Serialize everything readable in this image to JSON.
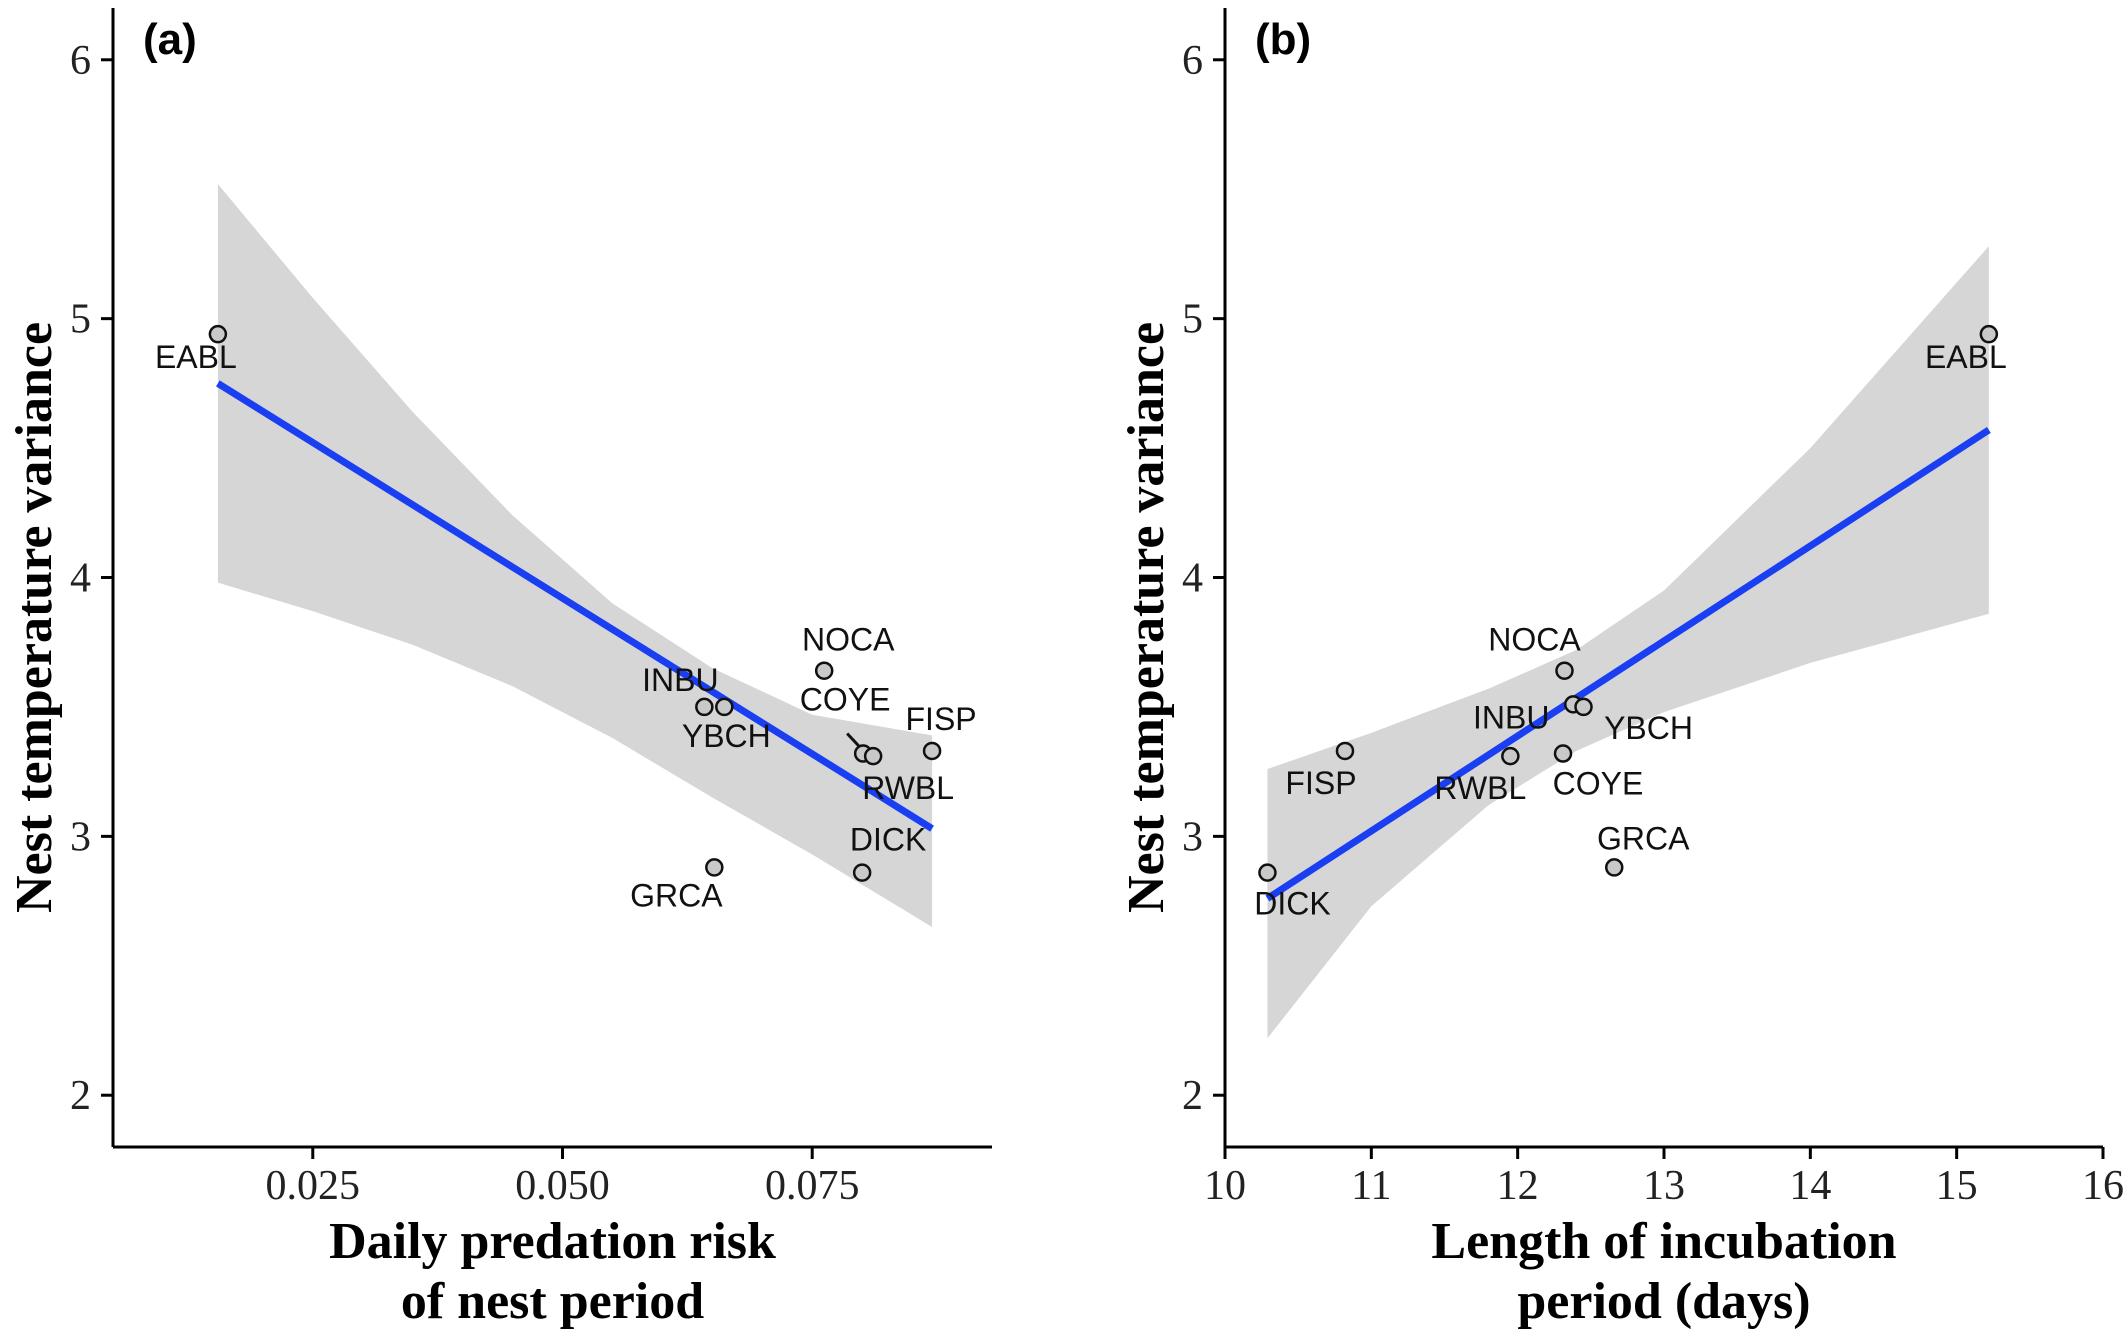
{
  "chart_data": [
    {
      "type": "scatter",
      "panel_label": "(a)",
      "xlabel": [
        "Daily predation risk",
        "of nest period"
      ],
      "ylabel": "Nest temperature variance",
      "xlim": [
        0.005,
        0.093
      ],
      "ylim": [
        1.8,
        6.2
      ],
      "xticks": [
        0.025,
        0.05,
        0.075
      ],
      "xtick_labels": [
        "0.025",
        "0.050",
        "0.075"
      ],
      "yticks": [
        2,
        3,
        4,
        5,
        6
      ],
      "ytick_labels": [
        "2",
        "3",
        "4",
        "5",
        "6"
      ],
      "grid": false,
      "points": [
        {
          "label": "EABL",
          "x": 0.0155,
          "y": 4.94
        },
        {
          "label": "NOCA",
          "x": 0.0762,
          "y": 3.64
        },
        {
          "label": "INBU",
          "x": 0.0642,
          "y": 3.5
        },
        {
          "label": "YBCH",
          "x": 0.0662,
          "y": 3.5
        },
        {
          "label": "COYE",
          "x": 0.0801,
          "y": 3.32
        },
        {
          "label": "RWBL",
          "x": 0.0811,
          "y": 3.31
        },
        {
          "label": "FISP",
          "x": 0.087,
          "y": 3.33
        },
        {
          "label": "DICK",
          "x": 0.08,
          "y": 2.86
        },
        {
          "label": "GRCA",
          "x": 0.0652,
          "y": 2.88
        }
      ],
      "fit": {
        "x": [
          0.0155,
          0.087
        ],
        "y": [
          4.75,
          3.03
        ]
      },
      "band": {
        "x": [
          0.0155,
          0.025,
          0.035,
          0.045,
          0.055,
          0.065,
          0.075,
          0.087
        ],
        "upper": [
          5.52,
          5.08,
          4.64,
          4.24,
          3.9,
          3.65,
          3.47,
          3.39
        ],
        "lower": [
          3.98,
          3.87,
          3.74,
          3.58,
          3.38,
          3.15,
          2.93,
          2.65
        ]
      }
    },
    {
      "type": "scatter",
      "panel_label": "(b)",
      "xlabel": [
        "Length of incubation",
        "period (days)"
      ],
      "ylabel": "Nest temperature variance",
      "xlim": [
        10.0,
        16.0
      ],
      "ylim": [
        1.8,
        6.2
      ],
      "xticks": [
        10,
        11,
        12,
        13,
        14,
        15,
        16
      ],
      "xtick_labels": [
        "10",
        "11",
        "12",
        "13",
        "14",
        "15",
        "16"
      ],
      "yticks": [
        2,
        3,
        4,
        5,
        6
      ],
      "ytick_labels": [
        "2",
        "3",
        "4",
        "5",
        "6"
      ],
      "grid": false,
      "points": [
        {
          "label": "EABL",
          "x": 15.22,
          "y": 4.94
        },
        {
          "label": "NOCA",
          "x": 12.32,
          "y": 3.64
        },
        {
          "label": "INBU",
          "x": 12.38,
          "y": 3.51
        },
        {
          "label": "YBCH",
          "x": 12.45,
          "y": 3.5
        },
        {
          "label": "FISP",
          "x": 10.82,
          "y": 3.33
        },
        {
          "label": "RWBL",
          "x": 11.95,
          "y": 3.31
        },
        {
          "label": "COYE",
          "x": 12.31,
          "y": 3.32
        },
        {
          "label": "GRCA",
          "x": 12.66,
          "y": 2.88
        },
        {
          "label": "DICK",
          "x": 10.29,
          "y": 2.86
        }
      ],
      "fit": {
        "x": [
          10.29,
          15.22
        ],
        "y": [
          2.76,
          4.57
        ]
      },
      "band": {
        "x": [
          10.29,
          11.0,
          11.8,
          12.4,
          13.0,
          14.0,
          15.22
        ],
        "upper": [
          3.26,
          3.4,
          3.57,
          3.72,
          3.95,
          4.5,
          5.28
        ],
        "lower": [
          2.22,
          2.73,
          3.12,
          3.33,
          3.48,
          3.67,
          3.86
        ]
      }
    }
  ]
}
